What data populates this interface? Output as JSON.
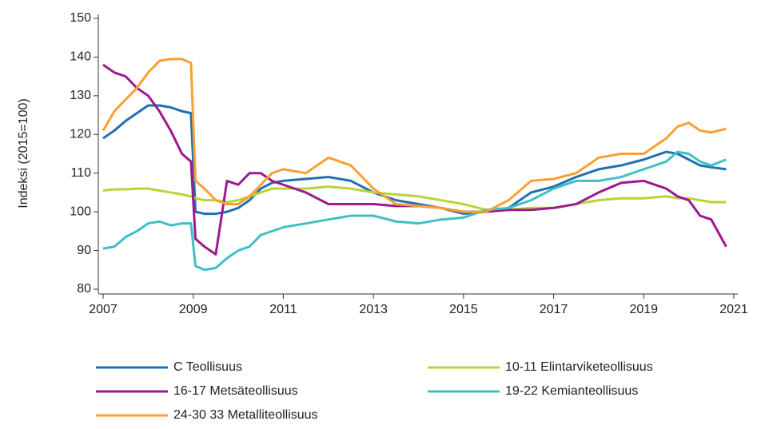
{
  "chart_data": {
    "type": "line",
    "y_label": "Indeksi (2015=100)",
    "x": [
      2007,
      2007.25,
      2007.5,
      2007.75,
      2008,
      2008.25,
      2008.5,
      2008.75,
      2008.95,
      2009.05,
      2009.25,
      2009.5,
      2009.75,
      2010,
      2010.25,
      2010.5,
      2010.75,
      2011,
      2011.5,
      2012,
      2012.5,
      2013,
      2013.5,
      2014,
      2014.5,
      2015,
      2015.5,
      2016,
      2016.5,
      2017,
      2017.5,
      2018,
      2018.5,
      2019,
      2019.5,
      2019.75,
      2020,
      2020.25,
      2020.5,
      2020.83
    ],
    "series": [
      {
        "name": "C Teollisuus",
        "color": "#1f70b0",
        "values": [
          119,
          121,
          123.5,
          125.5,
          127.5,
          127.5,
          127,
          126,
          125.5,
          100,
          99.5,
          99.5,
          100,
          101,
          103,
          106,
          107.5,
          108,
          108.5,
          109,
          108,
          105,
          103,
          102,
          101,
          99.5,
          100,
          101,
          105,
          106.5,
          109,
          111,
          112,
          113.5,
          115.5,
          115,
          113.5,
          112,
          111.5,
          111
        ]
      },
      {
        "name": "10-11 Elintarviketeollisuus",
        "color": "#b8d439",
        "values": [
          105.5,
          105.8,
          105.8,
          106,
          106,
          105.5,
          105,
          104.5,
          104,
          103.5,
          103,
          103,
          102.5,
          103,
          104,
          105,
          106,
          106,
          106,
          106.5,
          106,
          105,
          104.5,
          104,
          103,
          102,
          100.5,
          100.5,
          101,
          101,
          102,
          103,
          103.5,
          103.5,
          104,
          103.5,
          103.5,
          103,
          102.5,
          102.5
        ]
      },
      {
        "name": "16-17 Metsäteollisuus",
        "color": "#9c1a8f",
        "values": [
          138,
          136,
          135,
          132,
          130,
          126,
          121,
          115,
          113,
          93,
          91,
          89,
          108,
          107,
          110,
          110,
          108,
          107,
          105,
          102,
          102,
          102,
          101.5,
          101.5,
          101,
          100,
          100,
          100.5,
          100.5,
          101,
          102,
          105,
          107.5,
          108,
          106,
          104,
          103,
          99,
          98,
          91
        ]
      },
      {
        "name": "19-22 Kemianteollisuus",
        "color": "#40c0c4",
        "values": [
          90.5,
          91,
          93.5,
          95,
          97,
          97.5,
          96.5,
          97,
          97,
          86,
          85,
          85.5,
          88,
          90,
          91,
          94,
          95,
          96,
          97,
          98,
          99,
          99,
          97.5,
          97,
          98,
          98.5,
          100.5,
          101,
          103,
          106,
          108,
          108,
          109,
          111,
          113,
          115.5,
          115,
          113,
          112,
          113.5
        ]
      },
      {
        "name": "24-30  33 Metalliteollisuus",
        "color": "#f9a031",
        "values": [
          121,
          126,
          129,
          132,
          136,
          139,
          139.5,
          139.5,
          138.5,
          108,
          106,
          103,
          102,
          102,
          104,
          107,
          110,
          111,
          110,
          114,
          112,
          106,
          102,
          101.5,
          101,
          100,
          100,
          103,
          108,
          108.5,
          110,
          114,
          115,
          115,
          119,
          122,
          123,
          121,
          120.5,
          121.5
        ]
      }
    ],
    "xlim": [
      2007,
      2021
    ],
    "xticks": [
      2007,
      2009,
      2011,
      2013,
      2015,
      2017,
      2019,
      2021
    ],
    "ylim": [
      80,
      150
    ],
    "yticks": [
      80,
      90,
      100,
      110,
      120,
      130,
      140,
      150
    ]
  }
}
